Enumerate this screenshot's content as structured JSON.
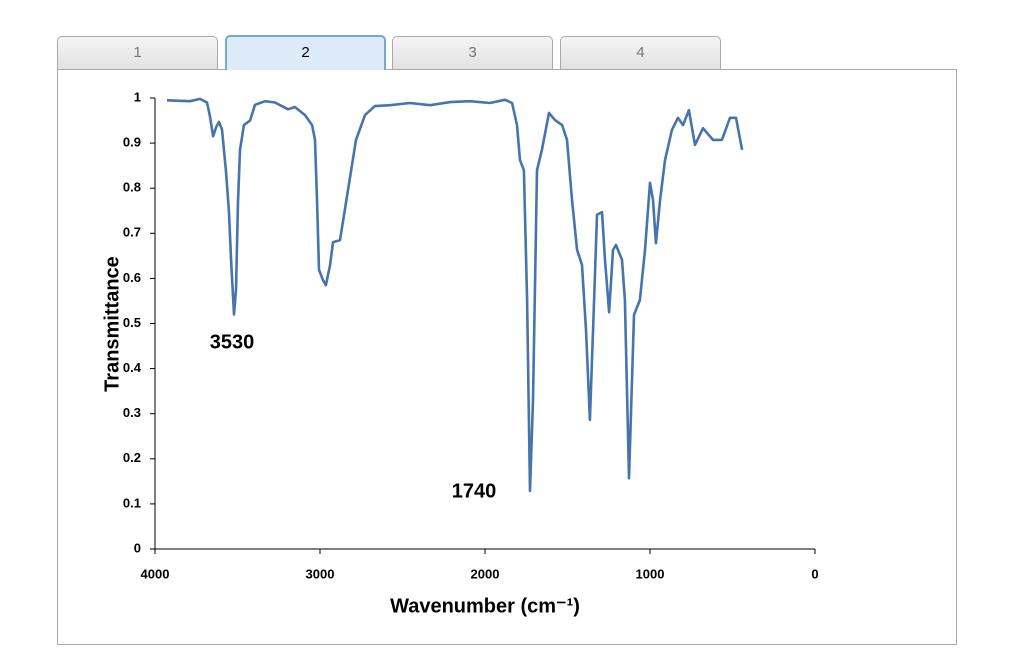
{
  "tabs": [
    "1",
    "2",
    "3",
    "4"
  ],
  "chart_data": {
    "type": "line",
    "xlabel": "Wavenumber (cm⁻¹)",
    "ylabel": "Transmittance",
    "annotations": [
      "3530",
      "1740"
    ],
    "color": "#4674ab",
    "x": [
      3927,
      3788,
      3727,
      3685,
      3667,
      3648,
      3630,
      3612,
      3594,
      3570,
      3552,
      3539,
      3521,
      3509,
      3497,
      3485,
      3461,
      3424,
      3394,
      3333,
      3273,
      3194,
      3152,
      3091,
      3048,
      3030,
      3018,
      3006,
      2982,
      2964,
      2939,
      2921,
      2879,
      2830,
      2782,
      2727,
      2667,
      2576,
      2455,
      2333,
      2212,
      2091,
      1970,
      1879,
      1836,
      1806,
      1788,
      1764,
      1745,
      1727,
      1709,
      1685,
      1655,
      1612,
      1576,
      1533,
      1503,
      1473,
      1442,
      1412,
      1388,
      1364,
      1339,
      1321,
      1291,
      1273,
      1248,
      1224,
      1206,
      1170,
      1152,
      1127,
      1097,
      1061,
      1030,
      1000,
      982,
      964,
      939,
      909,
      867,
      830,
      800,
      764,
      727,
      679,
      618,
      564,
      515,
      479,
      442
    ],
    "values": [
      0.995,
      0.993,
      0.998,
      0.99,
      0.96,
      0.915,
      0.935,
      0.947,
      0.93,
      0.84,
      0.75,
      0.64,
      0.52,
      0.575,
      0.77,
      0.885,
      0.94,
      0.95,
      0.985,
      0.993,
      0.99,
      0.975,
      0.98,
      0.962,
      0.94,
      0.907,
      0.774,
      0.619,
      0.596,
      0.585,
      0.63,
      0.68,
      0.685,
      0.796,
      0.907,
      0.962,
      0.982,
      0.984,
      0.989,
      0.984,
      0.991,
      0.993,
      0.989,
      0.996,
      0.989,
      0.94,
      0.862,
      0.84,
      0.552,
      0.129,
      0.33,
      0.84,
      0.885,
      0.967,
      0.951,
      0.94,
      0.907,
      0.774,
      0.663,
      0.63,
      0.486,
      0.286,
      0.552,
      0.741,
      0.747,
      0.641,
      0.525,
      0.663,
      0.674,
      0.641,
      0.552,
      0.157,
      0.519,
      0.552,
      0.663,
      0.812,
      0.774,
      0.678,
      0.774,
      0.862,
      0.929,
      0.956,
      0.94,
      0.973,
      0.896,
      0.933,
      0.907,
      0.907,
      0.956,
      0.956,
      0.885
    ],
    "xlim": [
      4000,
      0
    ],
    "xticks": [
      4000,
      3000,
      2000,
      1000,
      0
    ],
    "ylim": [
      0,
      1
    ],
    "yticks": [
      0,
      0.1,
      0.2,
      0.3,
      0.4,
      0.5,
      0.6,
      0.7,
      0.8,
      0.9,
      1
    ]
  }
}
